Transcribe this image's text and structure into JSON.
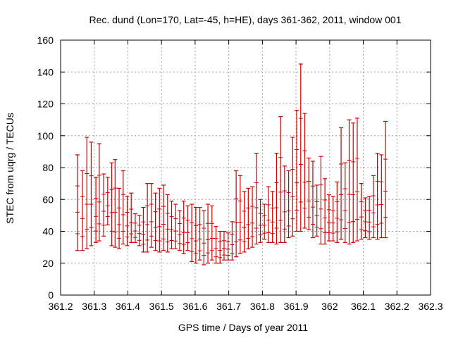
{
  "chart_data": {
    "type": "scatter",
    "title": "Rec. dund (Lon=170, Lat=-45, h=HE), days 361-362, 2011, window 001",
    "xlabel": "GPS time / Days of year 2011",
    "ylabel": "STEC from uqrg / TECUs",
    "xlim": [
      361.2,
      362.3
    ],
    "ylim": [
      0,
      160
    ],
    "xticks": [
      "361.2",
      "361.3",
      "361.4",
      "361.5",
      "361.6",
      "361.7",
      "361.8",
      "361.9",
      "362",
      "362.1",
      "362.2",
      "362.3"
    ],
    "yticks": [
      "0",
      "20",
      "40",
      "60",
      "80",
      "100",
      "120",
      "140",
      "160"
    ],
    "grid": true,
    "color": "#cc0000",
    "series": [
      {
        "points": [
          {
            "x": 361.25,
            "ymin": 28,
            "ymax": 88
          },
          {
            "x": 361.265,
            "ymin": 28,
            "ymax": 78
          },
          {
            "x": 361.278,
            "ymin": 29,
            "ymax": 99
          },
          {
            "x": 361.291,
            "ymin": 31,
            "ymax": 96
          },
          {
            "x": 361.305,
            "ymin": 33,
            "ymax": 74
          },
          {
            "x": 361.315,
            "ymin": 34,
            "ymax": 95
          },
          {
            "x": 361.328,
            "ymin": 37,
            "ymax": 76
          },
          {
            "x": 361.34,
            "ymin": 44,
            "ymax": 74
          },
          {
            "x": 361.352,
            "ymin": 31,
            "ymax": 83
          },
          {
            "x": 361.362,
            "ymin": 30,
            "ymax": 85
          },
          {
            "x": 361.374,
            "ymin": 29,
            "ymax": 67
          },
          {
            "x": 361.386,
            "ymin": 32,
            "ymax": 78
          },
          {
            "x": 361.398,
            "ymin": 31,
            "ymax": 62
          },
          {
            "x": 361.41,
            "ymin": 33,
            "ymax": 64
          },
          {
            "x": 361.422,
            "ymin": 33,
            "ymax": 51
          },
          {
            "x": 361.434,
            "ymin": 31,
            "ymax": 50
          },
          {
            "x": 361.446,
            "ymin": 27,
            "ymax": 55
          },
          {
            "x": 361.458,
            "ymin": 27,
            "ymax": 70
          },
          {
            "x": 361.47,
            "ymin": 30,
            "ymax": 70
          },
          {
            "x": 361.482,
            "ymin": 28,
            "ymax": 64
          },
          {
            "x": 361.494,
            "ymin": 27,
            "ymax": 67
          },
          {
            "x": 361.506,
            "ymin": 28,
            "ymax": 69
          },
          {
            "x": 361.518,
            "ymin": 27,
            "ymax": 63
          },
          {
            "x": 361.53,
            "ymin": 29,
            "ymax": 59
          },
          {
            "x": 361.542,
            "ymin": 29,
            "ymax": 57
          },
          {
            "x": 361.554,
            "ymin": 28,
            "ymax": 53
          },
          {
            "x": 361.566,
            "ymin": 26,
            "ymax": 59
          },
          {
            "x": 361.578,
            "ymin": 28,
            "ymax": 56
          },
          {
            "x": 361.59,
            "ymin": 21,
            "ymax": 57
          },
          {
            "x": 361.602,
            "ymin": 20,
            "ymax": 55
          },
          {
            "x": 361.614,
            "ymin": 22,
            "ymax": 55
          },
          {
            "x": 361.626,
            "ymin": 19,
            "ymax": 53
          },
          {
            "x": 361.638,
            "ymin": 20,
            "ymax": 57
          },
          {
            "x": 361.65,
            "ymin": 22,
            "ymax": 56
          },
          {
            "x": 361.662,
            "ymin": 20,
            "ymax": 43
          },
          {
            "x": 361.674,
            "ymin": 20,
            "ymax": 40
          },
          {
            "x": 361.686,
            "ymin": 22,
            "ymax": 40
          },
          {
            "x": 361.698,
            "ymin": 22,
            "ymax": 39
          },
          {
            "x": 361.71,
            "ymin": 22,
            "ymax": 46
          },
          {
            "x": 361.722,
            "ymin": 24,
            "ymax": 78
          },
          {
            "x": 361.734,
            "ymin": 26,
            "ymax": 75
          },
          {
            "x": 361.746,
            "ymin": 27,
            "ymax": 65
          },
          {
            "x": 361.758,
            "ymin": 29,
            "ymax": 67
          },
          {
            "x": 361.77,
            "ymin": 30,
            "ymax": 68
          },
          {
            "x": 361.782,
            "ymin": 32,
            "ymax": 89
          },
          {
            "x": 361.794,
            "ymin": 33,
            "ymax": 60
          },
          {
            "x": 361.806,
            "ymin": 35,
            "ymax": 57
          },
          {
            "x": 361.818,
            "ymin": 33,
            "ymax": 68
          },
          {
            "x": 361.83,
            "ymin": 33,
            "ymax": 65
          },
          {
            "x": 361.842,
            "ymin": 32,
            "ymax": 89
          },
          {
            "x": 361.854,
            "ymin": 33,
            "ymax": 112
          },
          {
            "x": 361.866,
            "ymin": 33,
            "ymax": 81
          },
          {
            "x": 361.878,
            "ymin": 36,
            "ymax": 78
          },
          {
            "x": 361.89,
            "ymin": 37,
            "ymax": 99
          },
          {
            "x": 361.902,
            "ymin": 40,
            "ymax": 116
          },
          {
            "x": 361.914,
            "ymin": 40,
            "ymax": 145
          },
          {
            "x": 361.926,
            "ymin": 42,
            "ymax": 114
          },
          {
            "x": 361.938,
            "ymin": 41,
            "ymax": 86
          },
          {
            "x": 361.95,
            "ymin": 36,
            "ymax": 84
          },
          {
            "x": 361.962,
            "ymin": 37,
            "ymax": 69
          },
          {
            "x": 361.974,
            "ymin": 32,
            "ymax": 87
          },
          {
            "x": 361.986,
            "ymin": 32,
            "ymax": 73
          },
          {
            "x": 361.998,
            "ymin": 34,
            "ymax": 63
          },
          {
            "x": 362.01,
            "ymin": 34,
            "ymax": 62
          },
          {
            "x": 362.022,
            "ymin": 33,
            "ymax": 71
          },
          {
            "x": 362.034,
            "ymin": 35,
            "ymax": 105
          },
          {
            "x": 362.046,
            "ymin": 33,
            "ymax": 83
          },
          {
            "x": 362.058,
            "ymin": 32,
            "ymax": 110
          },
          {
            "x": 362.07,
            "ymin": 33,
            "ymax": 108
          },
          {
            "x": 362.082,
            "ymin": 34,
            "ymax": 111
          },
          {
            "x": 362.094,
            "ymin": 35,
            "ymax": 70
          },
          {
            "x": 362.106,
            "ymin": 36,
            "ymax": 61
          },
          {
            "x": 362.118,
            "ymin": 35,
            "ymax": 62
          },
          {
            "x": 362.13,
            "ymin": 36,
            "ymax": 75
          },
          {
            "x": 362.142,
            "ymin": 35,
            "ymax": 89
          },
          {
            "x": 362.154,
            "ymin": 36,
            "ymax": 88
          },
          {
            "x": 362.166,
            "ymin": 36,
            "ymax": 109
          }
        ]
      }
    ]
  }
}
